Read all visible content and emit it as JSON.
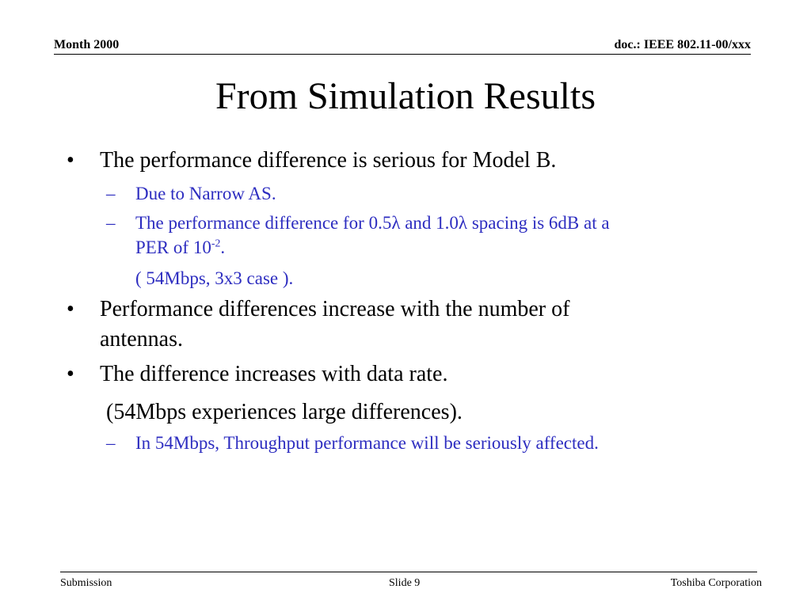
{
  "header": {
    "left": "Month 2000",
    "right": "doc.: IEEE 802.11-00/xxx"
  },
  "title": "From Simulation Results",
  "bullets": {
    "b1": "The performance difference is serious for Model B.",
    "b1_sub1": "Due to Narrow AS.",
    "b1_sub2_line1": "The performance difference for 0.5λ and 1.0λ spacing is 6dB at a",
    "b1_sub2_line2_pre": "PER of 10",
    "b1_sub2_line2_sup": "-2",
    "b1_sub2_line2_post": ".",
    "b1_sub2_cont": "( 54Mbps, 3x3 case ).",
    "b2_line1": "Performance differences increase with the number of",
    "b2_line2": "antennas.",
    "b3": "The difference increases with data rate.",
    "b3_cont": "(54Mbps experiences large differences).",
    "b3_sub1": "In 54Mbps, Throughput performance will be seriously affected."
  },
  "bullet_glyph": "•",
  "dash_glyph": "–",
  "footer": {
    "left": "Submission",
    "center": "Slide 9",
    "right": "Toshiba Corporation"
  },
  "colors": {
    "sub_bullet_text": "#2d2dc0"
  }
}
